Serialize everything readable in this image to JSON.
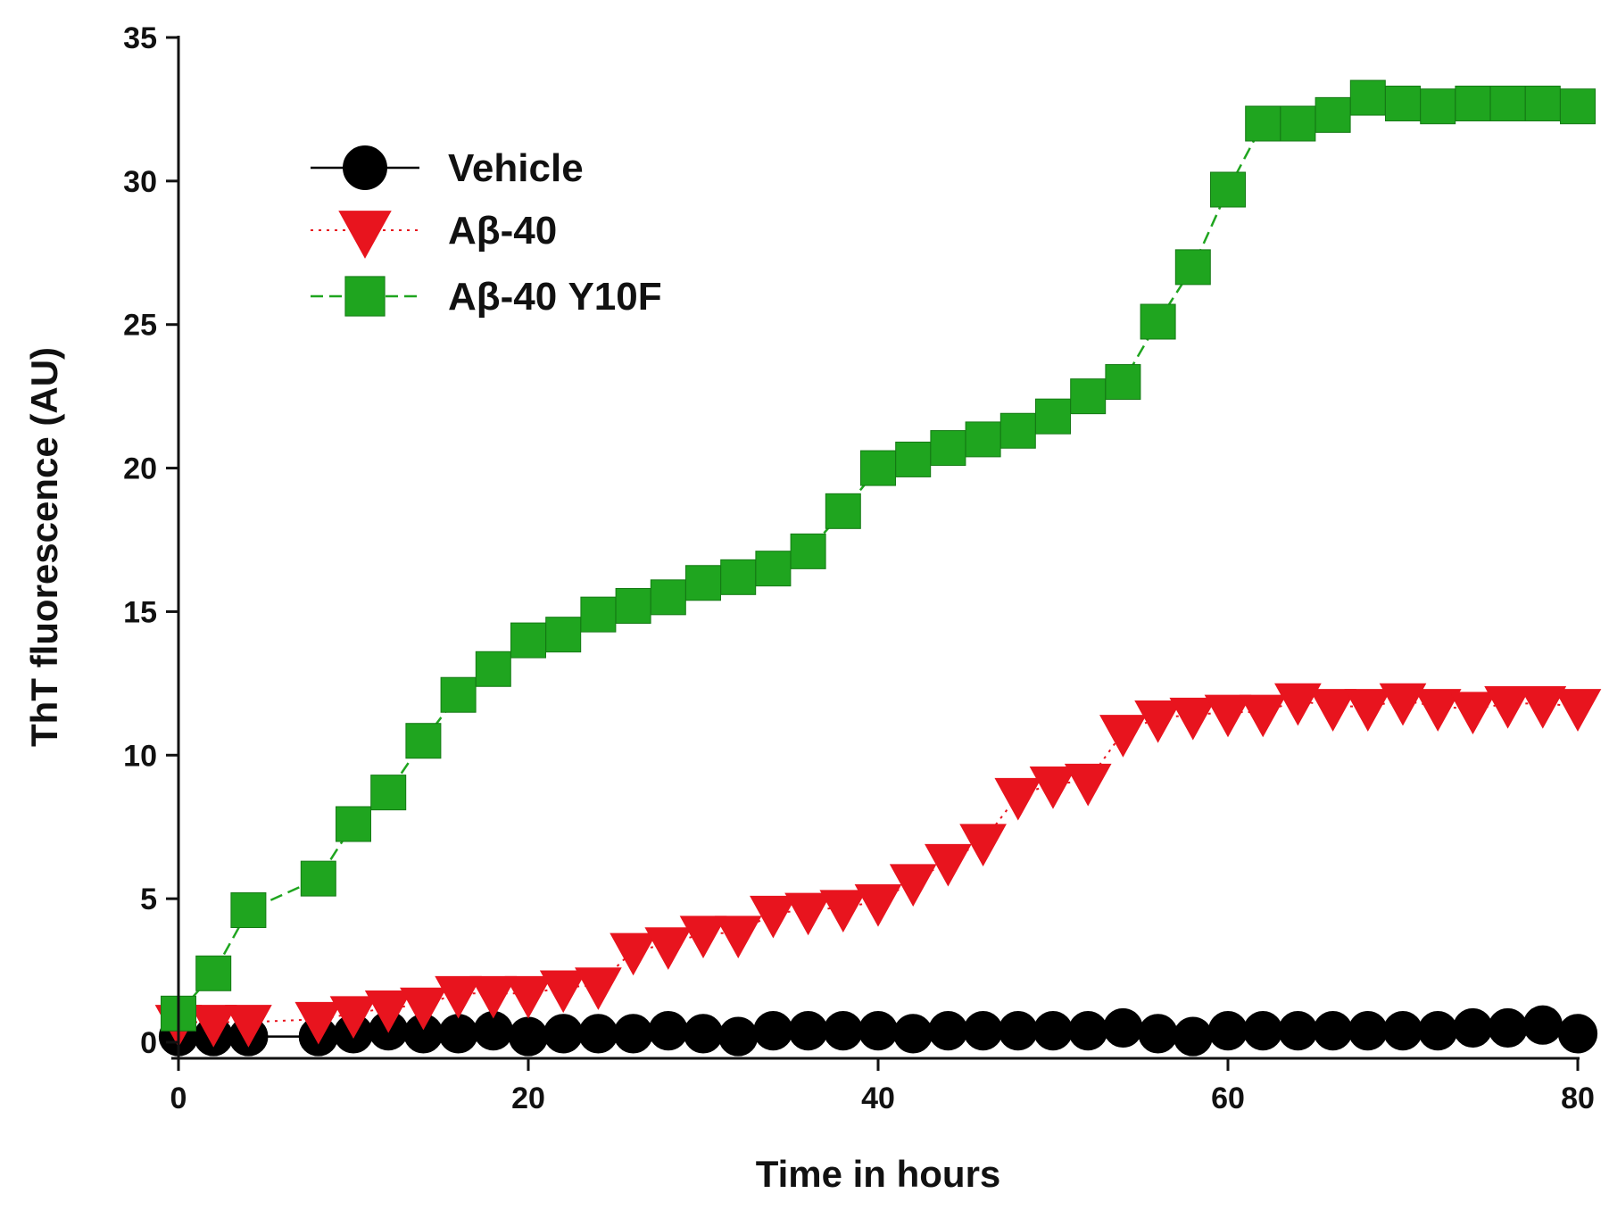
{
  "chart_data": {
    "type": "line",
    "title": "",
    "xlabel": "Time in hours",
    "ylabel": "ThT fluorescence (AU)",
    "xlim": [
      0,
      80
    ],
    "ylim": [
      0,
      35
    ],
    "xticks": [
      0,
      20,
      40,
      60,
      80
    ],
    "yticks": [
      0,
      5,
      10,
      15,
      20,
      25,
      30,
      35
    ],
    "legend_position": "top-left",
    "grid": false,
    "series": [
      {
        "name": "Vehicle",
        "color": "#000000",
        "marker": "circle",
        "line_style": "solid",
        "x": [
          0,
          2,
          4,
          8,
          10,
          12,
          14,
          16,
          18,
          20,
          22,
          24,
          26,
          28,
          30,
          32,
          34,
          36,
          38,
          40,
          42,
          44,
          46,
          48,
          50,
          52,
          54,
          56,
          58,
          60,
          62,
          64,
          66,
          68,
          70,
          72,
          74,
          76,
          78,
          80
        ],
        "values": [
          0.2,
          0.2,
          0.2,
          0.2,
          0.3,
          0.4,
          0.3,
          0.3,
          0.4,
          0.2,
          0.3,
          0.3,
          0.3,
          0.4,
          0.3,
          0.2,
          0.4,
          0.4,
          0.4,
          0.4,
          0.3,
          0.4,
          0.4,
          0.4,
          0.4,
          0.4,
          0.5,
          0.3,
          0.2,
          0.4,
          0.4,
          0.4,
          0.4,
          0.4,
          0.4,
          0.4,
          0.5,
          0.5,
          0.6,
          0.3
        ]
      },
      {
        "name": "Aβ-40",
        "color": "#e8141e",
        "marker": "triangle-down",
        "line_style": "dotted",
        "x": [
          0,
          2,
          4,
          8,
          10,
          12,
          14,
          16,
          18,
          20,
          22,
          24,
          26,
          28,
          30,
          32,
          34,
          36,
          38,
          40,
          42,
          44,
          46,
          48,
          50,
          52,
          54,
          56,
          58,
          60,
          62,
          64,
          66,
          68,
          70,
          72,
          74,
          76,
          78,
          80
        ],
        "values": [
          0.7,
          0.7,
          0.7,
          0.8,
          1.0,
          1.2,
          1.3,
          1.7,
          1.7,
          1.7,
          1.9,
          2.0,
          3.2,
          3.4,
          3.8,
          3.8,
          4.5,
          4.6,
          4.7,
          4.9,
          5.6,
          6.3,
          7.0,
          8.6,
          9.0,
          9.1,
          10.8,
          11.3,
          11.4,
          11.5,
          11.5,
          11.9,
          11.7,
          11.7,
          11.9,
          11.7,
          11.6,
          11.8,
          11.8,
          11.7
        ]
      },
      {
        "name": "Aβ-40 Y10F",
        "color": "#1fa51f",
        "marker": "square",
        "line_style": "dashed",
        "x": [
          0,
          2,
          4,
          8,
          10,
          12,
          14,
          16,
          18,
          20,
          22,
          24,
          26,
          28,
          30,
          32,
          34,
          36,
          38,
          40,
          42,
          44,
          46,
          48,
          50,
          52,
          54,
          56,
          58,
          60,
          62,
          64,
          66,
          68,
          70,
          72,
          74,
          76,
          78,
          80
        ],
        "values": [
          1.0,
          2.4,
          4.6,
          5.7,
          7.6,
          8.7,
          10.5,
          12.1,
          13.0,
          14.0,
          14.2,
          14.9,
          15.2,
          15.5,
          16.0,
          16.2,
          16.5,
          17.1,
          18.5,
          20.0,
          20.3,
          20.7,
          21.0,
          21.3,
          21.8,
          22.5,
          23.0,
          25.1,
          27.0,
          29.7,
          32.0,
          32.0,
          32.3,
          32.9,
          32.7,
          32.6,
          32.7,
          32.7,
          32.7,
          32.6
        ]
      }
    ]
  }
}
